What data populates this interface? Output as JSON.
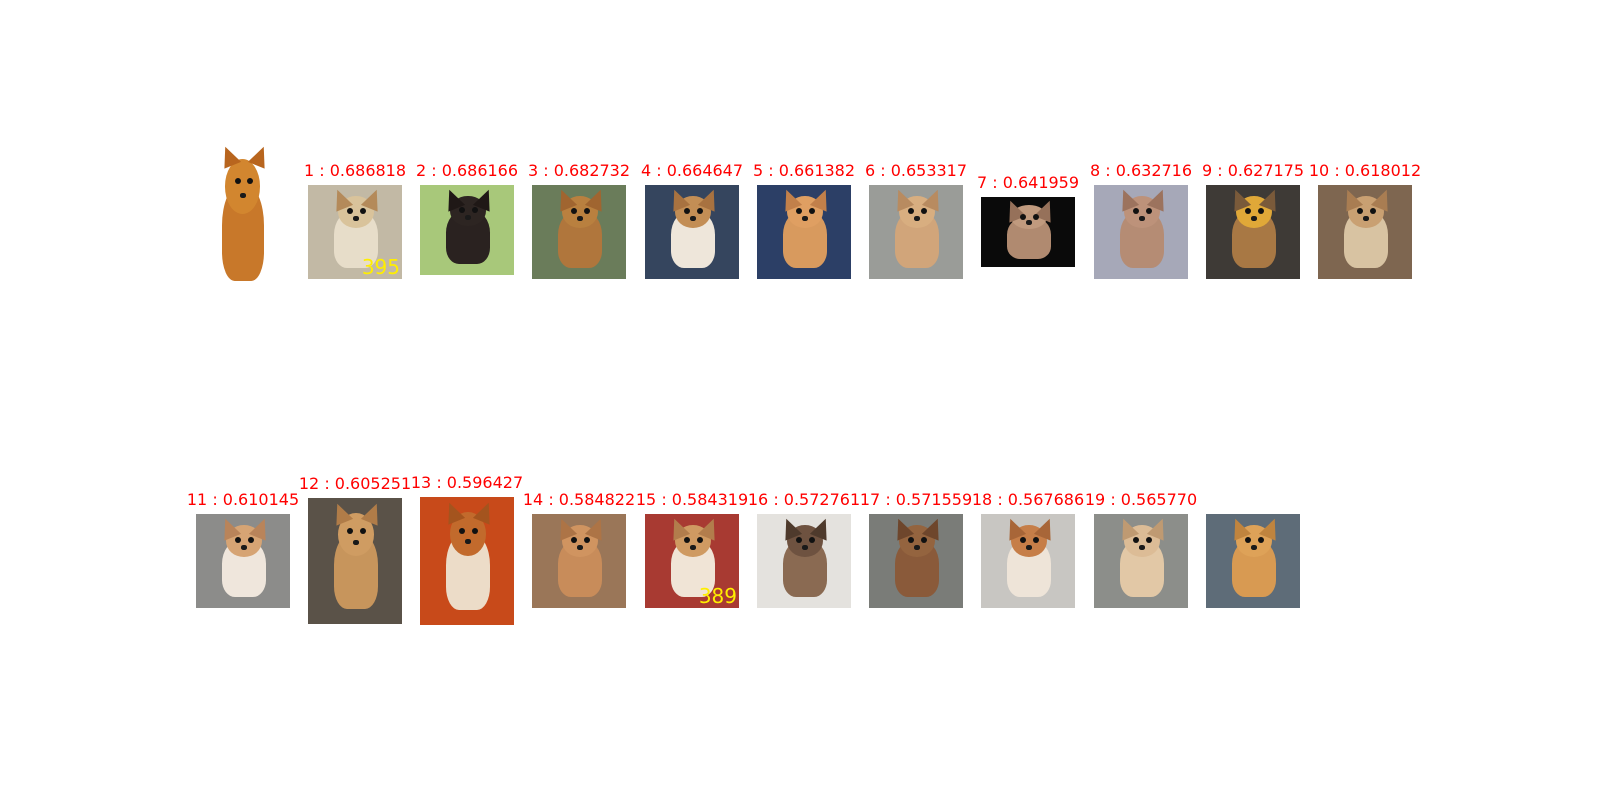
{
  "query": {
    "label": "query",
    "icon": "chihuahua-photo",
    "colors": {
      "bg": "#ffffff",
      "fur": "#c8782a",
      "head": "#d2862f",
      "ear": "#b8651e"
    }
  },
  "results": [
    {
      "label": "1 : 0.686818",
      "icon": "dog-photo",
      "overlay": "395",
      "colors": {
        "bg": "#c2b9a5",
        "fur": "#e7ddc9",
        "head": "#d9c39b",
        "ear": "#b48a5a"
      }
    },
    {
      "label": "2 : 0.686166",
      "icon": "dog-photo",
      "overlay": "",
      "colors": {
        "bg": "#a8c87a",
        "fur": "#2a2220",
        "head": "#2d2522",
        "ear": "#1f1816"
      }
    },
    {
      "label": "3 : 0.682732",
      "icon": "dog-photo",
      "overlay": "",
      "colors": {
        "bg": "#6a7c5a",
        "fur": "#b0763c",
        "head": "#b9803f",
        "ear": "#a06530"
      }
    },
    {
      "label": "4 : 0.664647",
      "icon": "dog-photo",
      "overlay": "",
      "colors": {
        "bg": "#35455e",
        "fur": "#eee6da",
        "head": "#c38e55",
        "ear": "#a87240"
      }
    },
    {
      "label": "5 : 0.661382",
      "icon": "dog-photo",
      "overlay": "",
      "colors": {
        "bg": "#2c3f66",
        "fur": "#d89a5e",
        "head": "#df9f62",
        "ear": "#c2804a"
      }
    },
    {
      "label": "6 : 0.653317",
      "icon": "dog-photo",
      "overlay": "",
      "colors": {
        "bg": "#9a9c98",
        "fur": "#d1a57a",
        "head": "#d8ae80",
        "ear": "#b88b60"
      }
    },
    {
      "label": "7 : 0.641959",
      "icon": "dog-photo",
      "overlay": "",
      "colors": {
        "bg": "#0a0a0a",
        "fur": "#b08a70",
        "head": "#c09a7e",
        "ear": "#96715a"
      }
    },
    {
      "label": "8 : 0.632716",
      "icon": "dog-photo",
      "overlay": "",
      "colors": {
        "bg": "#a6a8b8",
        "fur": "#b58c74",
        "head": "#bd927a",
        "ear": "#9c735e"
      }
    },
    {
      "label": "9 : 0.627175",
      "icon": "dog-photo",
      "overlay": "",
      "colors": {
        "bg": "#3e3a36",
        "fur": "#a87844",
        "head": "#e0a838",
        "ear": "#7a5a3a"
      }
    },
    {
      "label": "10 : 0.618012",
      "icon": "dog-photo",
      "overlay": "",
      "colors": {
        "bg": "#7e6650",
        "fur": "#d8c3a2",
        "head": "#c9a072",
        "ear": "#a97d52"
      }
    },
    {
      "label": "11 : 0.610145",
      "icon": "dog-photo",
      "overlay": "",
      "colors": {
        "bg": "#8c8c8a",
        "fur": "#efe6dc",
        "head": "#d6a474",
        "ear": "#b9845a"
      }
    },
    {
      "label": "12 : 0.605251",
      "icon": "dog-photo",
      "overlay": "",
      "colors": {
        "bg": "#5a5248",
        "fur": "#c7955c",
        "head": "#cf9c62",
        "ear": "#b07c48"
      }
    },
    {
      "label": "13 : 0.596427",
      "icon": "dog-photo",
      "overlay": "",
      "colors": {
        "bg": "#c84a1a",
        "fur": "#ecdcc8",
        "head": "#c26a2c",
        "ear": "#a4541e"
      }
    },
    {
      "label": "14 : 0.584822",
      "icon": "dog-photo",
      "overlay": "",
      "colors": {
        "bg": "#9a7658",
        "fur": "#c88c5a",
        "head": "#d09460",
        "ear": "#ad7446"
      }
    },
    {
      "label": "15 : 0.584319",
      "icon": "dog-photo",
      "overlay": "389",
      "colors": {
        "bg": "#a83a32",
        "fur": "#f0e4d6",
        "head": "#cf9a62",
        "ear": "#b27d4c"
      }
    },
    {
      "label": "16 : 0.572761",
      "icon": "dog-photo",
      "overlay": "",
      "colors": {
        "bg": "#e4e2de",
        "fur": "#8a6a52",
        "head": "#6e5240",
        "ear": "#4e3a2c"
      }
    },
    {
      "label": "17 : 0.571559",
      "icon": "dog-photo",
      "overlay": "",
      "colors": {
        "bg": "#7a7c78",
        "fur": "#8a5a3a",
        "head": "#94643f",
        "ear": "#6e462c"
      }
    },
    {
      "label": "18 : 0.567686",
      "icon": "dog-photo",
      "overlay": "",
      "colors": {
        "bg": "#c8c6c2",
        "fur": "#eee4d8",
        "head": "#c67e48",
        "ear": "#a86638"
      }
    },
    {
      "label": "19 : 0.565770",
      "icon": "dog-photo",
      "overlay": "",
      "colors": {
        "bg": "#8c8e8a",
        "fur": "#e2c8a6",
        "head": "#dcbc96",
        "ear": "#bf9a72"
      }
    },
    {
      "label": "",
      "icon": "dog-photo",
      "overlay": "",
      "colors": {
        "bg": "#5e6c78",
        "fur": "#d89a52",
        "head": "#dea258",
        "ear": "#c0843e"
      }
    }
  ],
  "colors": {
    "label_query": "#000000",
    "label_result": "#ff0000",
    "overlay_text": "#ffee00"
  }
}
